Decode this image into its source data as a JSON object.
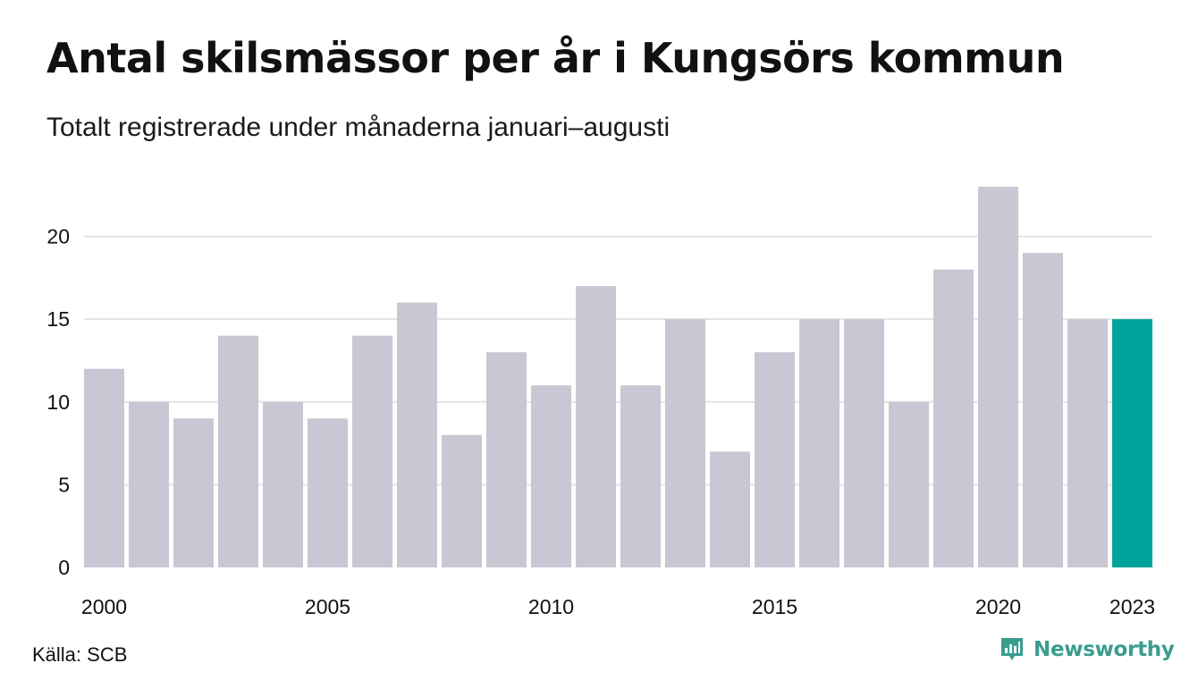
{
  "title": "Antal skilsmässor per år i Kungsörs kommun",
  "subtitle": "Totalt registrerade under månaderna januari–augusti",
  "source": "Källa: SCB",
  "brand": {
    "name": "Newsworthy",
    "color": "#3a9c8f",
    "icon": "newsworthy-logo-icon"
  },
  "colors": {
    "bar": "#c8c7d3",
    "highlight": "#00a49a",
    "grid": "#e3e3e3"
  },
  "chart_data": {
    "type": "bar",
    "categories": [
      "2000",
      "2001",
      "2002",
      "2003",
      "2004",
      "2005",
      "2006",
      "2007",
      "2008",
      "2009",
      "2010",
      "2011",
      "2012",
      "2013",
      "2014",
      "2015",
      "2016",
      "2017",
      "2018",
      "2019",
      "2020",
      "2021",
      "2022",
      "2023"
    ],
    "values": [
      12,
      10,
      9,
      14,
      10,
      9,
      14,
      16,
      8,
      13,
      11,
      17,
      11,
      15,
      7,
      13,
      15,
      15,
      10,
      18,
      23,
      19,
      15,
      15
    ],
    "highlight_category": "2023",
    "x_tick_labels": [
      "2000",
      "2005",
      "2010",
      "2015",
      "2020",
      "2023"
    ],
    "y_ticks": [
      0,
      5,
      10,
      15,
      20
    ],
    "ylim": [
      0,
      23
    ],
    "xlabel": "",
    "ylabel": "",
    "grid": true,
    "legend": false
  }
}
